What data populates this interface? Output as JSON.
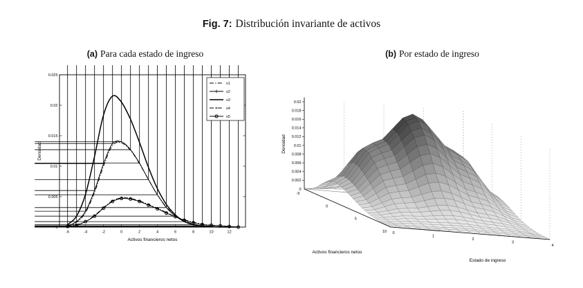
{
  "figure": {
    "caption_label": "Fig. 7:",
    "caption_text": "Distribución invariante de activos",
    "panel_a": {
      "label": "(a)",
      "title": "Para cada estado de ingreso"
    },
    "panel_b": {
      "label": "(b)",
      "title": "Por estado de ingreso"
    }
  },
  "colors": {
    "line": "#000000",
    "grid": "#999999",
    "background": "#ffffff"
  },
  "chart_data": [
    {
      "type": "line",
      "title": "Para cada estado de ingreso",
      "xlabel": "Activos financieros netos",
      "ylabel": "Densidad",
      "xlim": [
        -7,
        14
      ],
      "ylim": [
        0,
        0.025
      ],
      "x_ticks": [
        -6,
        -4,
        -2,
        0,
        2,
        4,
        6,
        8,
        10,
        12
      ],
      "y_ticks": [
        0.005,
        0.01,
        0.015,
        0.02,
        0.025
      ],
      "legend_position": "top-right",
      "grid": false,
      "x": [
        -6,
        -5,
        -4,
        -3,
        -2,
        -1,
        0,
        1,
        2,
        3,
        4,
        5,
        6,
        7,
        8,
        9,
        10,
        11,
        12,
        13
      ],
      "series": [
        {
          "name": "s1",
          "style": "dashdot",
          "marker": "none",
          "values": [
            0.0002,
            0.0008,
            0.0024,
            0.0057,
            0.01,
            0.0134,
            0.0138,
            0.0126,
            0.0104,
            0.0078,
            0.0053,
            0.0033,
            0.0019,
            0.001,
            0.0005,
            0.0002,
            0.0001,
            0,
            0,
            0
          ]
        },
        {
          "name": "s2",
          "style": "solid",
          "marker": "plus",
          "values": [
            0.0002,
            0.0009,
            0.0026,
            0.006,
            0.0104,
            0.0137,
            0.014,
            0.0127,
            0.0105,
            0.0078,
            0.0053,
            0.0032,
            0.0018,
            0.0009,
            0.0004,
            0.0002,
            0.0001,
            0,
            0,
            0
          ]
        },
        {
          "name": "s3",
          "style": "solid",
          "marker": "none",
          "values": [
            0.0004,
            0.0018,
            0.0054,
            0.0116,
            0.0184,
            0.0215,
            0.0205,
            0.0177,
            0.0139,
            0.0098,
            0.0063,
            0.0037,
            0.002,
            0.0009,
            0.0004,
            0.0002,
            0.0001,
            0,
            0,
            0
          ]
        },
        {
          "name": "s4",
          "style": "dashdot",
          "marker": "dot",
          "values": [
            0.0001,
            0.0004,
            0.0009,
            0.0019,
            0.0032,
            0.0043,
            0.0048,
            0.0047,
            0.0043,
            0.0037,
            0.0031,
            0.0024,
            0.0017,
            0.0012,
            0.0008,
            0.0005,
            0.0003,
            0.0002,
            0.0001,
            0
          ]
        },
        {
          "name": "s5",
          "style": "solid",
          "marker": "circle",
          "values": [
            0.0001,
            0.0003,
            0.0009,
            0.0018,
            0.0031,
            0.0042,
            0.0047,
            0.0046,
            0.0042,
            0.0036,
            0.003,
            0.0023,
            0.0017,
            0.0011,
            0.0007,
            0.0004,
            0.0003,
            0.0002,
            0.0001,
            0
          ]
        }
      ]
    },
    {
      "type": "surface",
      "title": "Por estado de ingreso",
      "xlabel": "Estado de ingreso",
      "ylabel": "Activos financieros netos",
      "zlabel": "Densidad",
      "estado_ticks": [
        0,
        1,
        2,
        3,
        4
      ],
      "asset_ticks": [
        -5,
        0,
        5,
        10
      ],
      "z_ticks": [
        0.002,
        0.004,
        0.006,
        0.008,
        0.01,
        0.012,
        0.014,
        0.016,
        0.018,
        0.02
      ],
      "estado_values": [
        0,
        1,
        2,
        3,
        4
      ],
      "asset_values": [
        -5,
        -4,
        -3,
        -2,
        -1,
        0,
        1,
        2,
        3,
        4,
        5,
        6,
        7,
        8,
        9,
        10
      ],
      "z": [
        [
          0.0002,
          0.0006,
          0.0015,
          0.0029,
          0.0041,
          0.0047,
          0.0045,
          0.0039,
          0.0031,
          0.0023,
          0.0015,
          0.0009,
          0.0005,
          0.0002,
          0.0001,
          0
        ],
        [
          0.0006,
          0.0019,
          0.0046,
          0.0086,
          0.0125,
          0.0142,
          0.0136,
          0.0118,
          0.0094,
          0.0068,
          0.0045,
          0.0027,
          0.0015,
          0.0008,
          0.0003,
          0.0001
        ],
        [
          0.0009,
          0.0029,
          0.007,
          0.0131,
          0.019,
          0.0215,
          0.0205,
          0.0179,
          0.0142,
          0.0103,
          0.0068,
          0.0041,
          0.0023,
          0.0011,
          0.0005,
          0.0002
        ],
        [
          0.0006,
          0.0019,
          0.0046,
          0.0085,
          0.0123,
          0.014,
          0.0134,
          0.0116,
          0.0093,
          0.0067,
          0.0045,
          0.0027,
          0.0015,
          0.0007,
          0.0003,
          0.0001
        ],
        [
          0.0002,
          0.0006,
          0.0015,
          0.0029,
          0.0042,
          0.0048,
          0.0046,
          0.004,
          0.0032,
          0.0023,
          0.0015,
          0.0009,
          0.0005,
          0.0002,
          0.0001,
          0
        ]
      ]
    }
  ]
}
